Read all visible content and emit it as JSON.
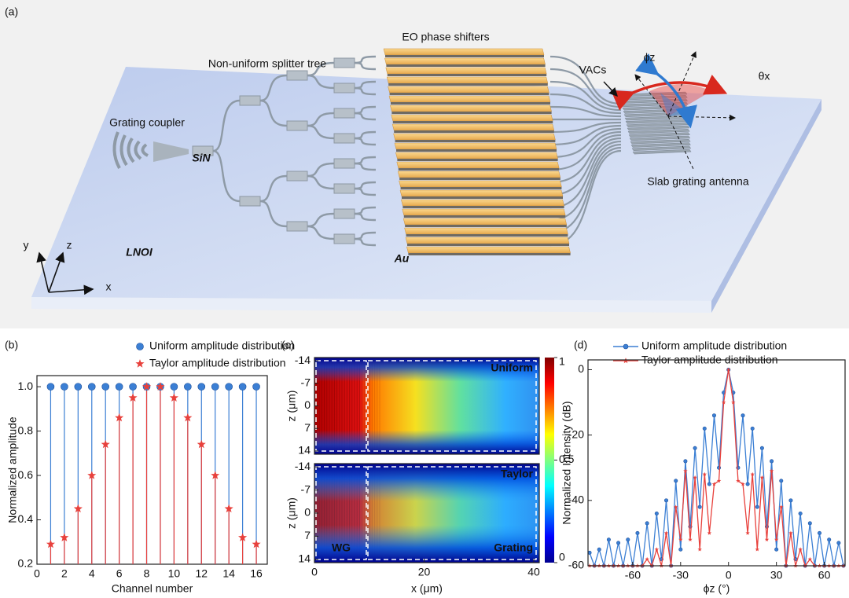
{
  "figure_a": {
    "panel_label": "(a)",
    "labels": [
      "Non-uniform splitter tree",
      "EO phase shifters",
      "VACs",
      "Grating coupler",
      "SiN",
      "Slab grating antenna",
      "LNOI",
      "Au",
      "x",
      "y",
      "z",
      "ϕz",
      "θx"
    ]
  },
  "chart_data": [
    {
      "type": "stem",
      "panel_label": "(b)",
      "xlabel": "Channel number",
      "ylabel": "Normalized amplitude",
      "x": [
        1,
        2,
        3,
        4,
        5,
        6,
        7,
        8,
        9,
        10,
        11,
        12,
        13,
        14,
        15,
        16
      ],
      "series": [
        {
          "name": "Uniform amplitude distribution",
          "color": "#3b7fd4",
          "marker": "circle",
          "values": [
            1,
            1,
            1,
            1,
            1,
            1,
            1,
            1,
            1,
            1,
            1,
            1,
            1,
            1,
            1,
            1
          ]
        },
        {
          "name": "Taylor amplitude distribution",
          "color": "#e8413c",
          "marker": "star",
          "values": [
            0.29,
            0.32,
            0.45,
            0.6,
            0.74,
            0.86,
            0.95,
            1,
            1,
            0.95,
            0.86,
            0.74,
            0.6,
            0.45,
            0.32,
            0.29
          ]
        }
      ],
      "xlim": [
        0,
        16.8
      ],
      "xticks": [
        0,
        2,
        4,
        6,
        8,
        10,
        12,
        14,
        16
      ],
      "ylim": [
        0.2,
        1.05
      ],
      "yticks": [
        0.2,
        0.4,
        0.6,
        0.8,
        {
          "value": 1,
          "label": "1.0"
        }
      ]
    },
    {
      "type": "heatmap",
      "panel_label": "(c)",
      "xlabel": "x (μm)",
      "ylabel": "z (μm)",
      "subplots": [
        "Uniform",
        "Taylor"
      ],
      "region_labels": [
        "WG",
        "Grating"
      ],
      "xlim": [
        0,
        41
      ],
      "xticks": [
        0,
        20,
        40
      ],
      "ylim": [
        -15,
        15
      ],
      "yticks": [
        -14,
        -7,
        0,
        7,
        14
      ],
      "y_inverted": true,
      "clim": [
        0,
        1
      ],
      "cticks": [
        0,
        0.5,
        1
      ]
    },
    {
      "type": "line",
      "panel_label": "(d)",
      "xlabel": "ϕz (°)",
      "ylabel": "Normalized Intensity (dB)",
      "x": [
        -87,
        -84,
        -81,
        -78,
        -75,
        -72,
        -69,
        -66,
        -63,
        -60,
        -57,
        -54,
        -51,
        -48,
        -45,
        -42,
        -39,
        -36,
        -33,
        -30,
        -27,
        -24,
        -21,
        -18,
        -15,
        -12,
        -9,
        -6,
        -3,
        0,
        3,
        6,
        9,
        12,
        15,
        18,
        21,
        24,
        27,
        30,
        33,
        36,
        39,
        42,
        45,
        48,
        51,
        54,
        57,
        60,
        63,
        66,
        69,
        72
      ],
      "series": [
        {
          "name": "Uniform amplitude distribution",
          "color": "#3b7fd4",
          "marker": "circle",
          "values": [
            -56,
            -60,
            -55,
            -60,
            -52,
            -60,
            -53,
            -60,
            -52,
            -60,
            -50,
            -60,
            -47,
            -60,
            -44,
            -58,
            -40,
            -60,
            -34,
            -55,
            -28,
            -48,
            -24,
            -42,
            -18,
            -35,
            -14,
            -30,
            -7,
            0,
            -7,
            -30,
            -14,
            -35,
            -18,
            -42,
            -24,
            -48,
            -28,
            -55,
            -34,
            -60,
            -40,
            -58,
            -44,
            -60,
            -47,
            -60,
            -50,
            -60,
            -52,
            -60,
            -53,
            -60
          ]
        },
        {
          "name": "Taylor amplitude distribution",
          "color": "#e8413c",
          "marker": "star",
          "values": [
            -60,
            -60,
            -60,
            -60,
            -60,
            -60,
            -60,
            -60,
            -60,
            -60,
            -60,
            -60,
            -58,
            -60,
            -55,
            -60,
            -50,
            -60,
            -42,
            -52,
            -31,
            -52,
            -33,
            -55,
            -32,
            -50,
            -35,
            -34,
            -10,
            0,
            -10,
            -34,
            -35,
            -50,
            -32,
            -55,
            -33,
            -52,
            -31,
            -52,
            -42,
            -60,
            -50,
            -60,
            -55,
            -60,
            -58,
            -60,
            -60,
            -60,
            -60,
            -60,
            -60,
            -60
          ]
        }
      ],
      "xlim": [
        -88,
        73
      ],
      "xticks": [
        -60,
        -30,
        0,
        30,
        60
      ],
      "ylim": [
        -60,
        3
      ],
      "yticks": [
        -60,
        -40,
        -20,
        0
      ]
    }
  ]
}
